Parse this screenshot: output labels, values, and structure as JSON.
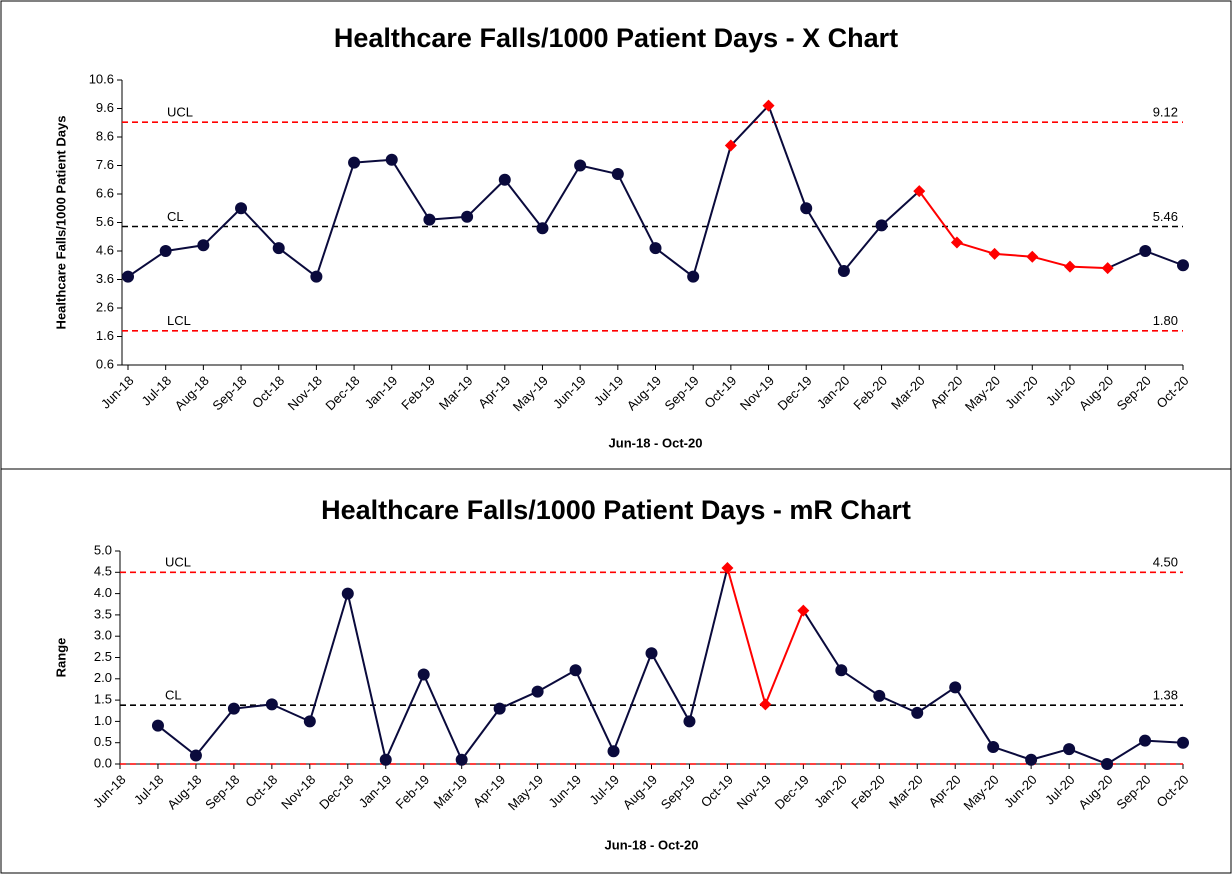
{
  "chart_data": [
    {
      "type": "line",
      "title": "Healthcare Falls/1000 Patient Days - X Chart",
      "xlabel": "Jun-18 - Oct-20",
      "ylabel": "Healthcare Falls/1000 Patient Days",
      "categories": [
        "Jun-18",
        "Jul-18",
        "Aug-18",
        "Sep-18",
        "Oct-18",
        "Nov-18",
        "Dec-18",
        "Jan-19",
        "Feb-19",
        "Mar-19",
        "Apr-19",
        "May-19",
        "Jun-19",
        "Jul-19",
        "Aug-19",
        "Sep-19",
        "Oct-19",
        "Nov-19",
        "Dec-19",
        "Jan-20",
        "Feb-20",
        "Mar-20",
        "Apr-20",
        "May-20",
        "Jun-20",
        "Jul-20",
        "Aug-20",
        "Sep-20",
        "Oct-20"
      ],
      "values": [
        3.7,
        4.6,
        4.8,
        6.1,
        4.7,
        3.7,
        7.7,
        7.8,
        5.7,
        5.8,
        7.1,
        5.4,
        7.6,
        7.3,
        4.7,
        3.7,
        8.3,
        9.7,
        6.1,
        3.9,
        5.5,
        6.7,
        4.9,
        4.5,
        4.4,
        4.05,
        4.0,
        4.6,
        4.1
      ],
      "color": "#0a0a3c",
      "marker_colors": [
        "#0a0a3c",
        "#0a0a3c",
        "#0a0a3c",
        "#0a0a3c",
        "#0a0a3c",
        "#0a0a3c",
        "#0a0a3c",
        "#0a0a3c",
        "#0a0a3c",
        "#0a0a3c",
        "#0a0a3c",
        "#0a0a3c",
        "#0a0a3c",
        "#0a0a3c",
        "#0a0a3c",
        "#0a0a3c",
        "#ff0000",
        "#ff0000",
        "#0a0a3c",
        "#0a0a3c",
        "#0a0a3c",
        "#ff0000",
        "#ff0000",
        "#ff0000",
        "#ff0000",
        "#ff0000",
        "#ff0000",
        "#0a0a3c",
        "#0a0a3c"
      ],
      "segment_colors": [
        "#0a0a3c",
        "#0a0a3c",
        "#0a0a3c",
        "#0a0a3c",
        "#0a0a3c",
        "#0a0a3c",
        "#0a0a3c",
        "#0a0a3c",
        "#0a0a3c",
        "#0a0a3c",
        "#0a0a3c",
        "#0a0a3c",
        "#0a0a3c",
        "#0a0a3c",
        "#0a0a3c",
        "#0a0a3c",
        "#0a0a3c",
        "#0a0a3c",
        "#0a0a3c",
        "#0a0a3c",
        "#0a0a3c",
        "#ff0000",
        "#ff0000",
        "#ff0000",
        "#ff0000",
        "#ff0000",
        "#0a0a3c",
        "#0a0a3c"
      ],
      "limits": [
        {
          "name": "UCL",
          "value": 9.12,
          "label": "9.12",
          "color": "#ff0000"
        },
        {
          "name": "CL",
          "value": 5.46,
          "label": "5.46",
          "color": "#000000"
        },
        {
          "name": "LCL",
          "value": 1.8,
          "label": "1.80",
          "color": "#ff0000"
        }
      ],
      "ylim": [
        0.6,
        10.6
      ],
      "yticks": [
        0.6,
        1.6,
        2.6,
        3.6,
        4.6,
        5.6,
        6.6,
        7.6,
        8.6,
        9.6,
        10.6
      ]
    },
    {
      "type": "line",
      "title": "Healthcare Falls/1000 Patient Days - mR Chart",
      "xlabel": "Jun-18 - Oct-20",
      "ylabel": "Range",
      "categories": [
        "Jun-18",
        "Jul-18",
        "Aug-18",
        "Sep-18",
        "Oct-18",
        "Nov-18",
        "Dec-18",
        "Jan-19",
        "Feb-19",
        "Mar-19",
        "Apr-19",
        "May-19",
        "Jun-19",
        "Jul-19",
        "Aug-19",
        "Sep-19",
        "Oct-19",
        "Nov-19",
        "Dec-19",
        "Jan-20",
        "Feb-20",
        "Mar-20",
        "Apr-20",
        "May-20",
        "Jun-20",
        "Jul-20",
        "Aug-20",
        "Sep-20",
        "Oct-20"
      ],
      "values": [
        null,
        0.9,
        0.2,
        1.3,
        1.4,
        1.0,
        4.0,
        0.1,
        2.1,
        0.1,
        1.3,
        1.7,
        2.2,
        0.3,
        2.6,
        1.0,
        4.6,
        1.4,
        3.6,
        2.2,
        1.6,
        1.2,
        1.8,
        0.4,
        0.1,
        0.35,
        0.0,
        0.55,
        0.5
      ],
      "color": "#0a0a3c",
      "marker_colors": [
        "#0a0a3c",
        "#0a0a3c",
        "#0a0a3c",
        "#0a0a3c",
        "#0a0a3c",
        "#0a0a3c",
        "#0a0a3c",
        "#0a0a3c",
        "#0a0a3c",
        "#0a0a3c",
        "#0a0a3c",
        "#0a0a3c",
        "#0a0a3c",
        "#0a0a3c",
        "#0a0a3c",
        "#0a0a3c",
        "#ff0000",
        "#ff0000",
        "#ff0000",
        "#0a0a3c",
        "#0a0a3c",
        "#0a0a3c",
        "#0a0a3c",
        "#0a0a3c",
        "#0a0a3c",
        "#0a0a3c",
        "#0a0a3c",
        "#0a0a3c",
        "#0a0a3c"
      ],
      "segment_colors": [
        "#0a0a3c",
        "#0a0a3c",
        "#0a0a3c",
        "#0a0a3c",
        "#0a0a3c",
        "#0a0a3c",
        "#0a0a3c",
        "#0a0a3c",
        "#0a0a3c",
        "#0a0a3c",
        "#0a0a3c",
        "#0a0a3c",
        "#0a0a3c",
        "#0a0a3c",
        "#0a0a3c",
        "#0a0a3c",
        "#ff0000",
        "#ff0000",
        "#0a0a3c",
        "#0a0a3c",
        "#0a0a3c",
        "#0a0a3c",
        "#0a0a3c",
        "#0a0a3c",
        "#0a0a3c",
        "#0a0a3c",
        "#0a0a3c",
        "#0a0a3c"
      ],
      "limits": [
        {
          "name": "UCL",
          "value": 4.5,
          "label": "4.50",
          "color": "#ff0000"
        },
        {
          "name": "CL",
          "value": 1.38,
          "label": "1.38",
          "color": "#000000"
        },
        {
          "value": 0,
          "color": "#ff0000"
        }
      ],
      "ylim": [
        0,
        5
      ],
      "yticks": [
        {
          "value": 0,
          "label": "0.0"
        },
        {
          "value": 0.5,
          "label": "0.5"
        },
        {
          "value": 1,
          "label": "1.0"
        },
        {
          "value": 1.5,
          "label": "1.5"
        },
        {
          "value": 2,
          "label": "2.0"
        },
        {
          "value": 2.5,
          "label": "2.5"
        },
        {
          "value": 3,
          "label": "3.0"
        },
        {
          "value": 3.5,
          "label": "3.5"
        },
        {
          "value": 4,
          "label": "4.0"
        },
        {
          "value": 4.5,
          "label": "4.5"
        },
        {
          "value": 5,
          "label": "5.0"
        }
      ]
    }
  ]
}
